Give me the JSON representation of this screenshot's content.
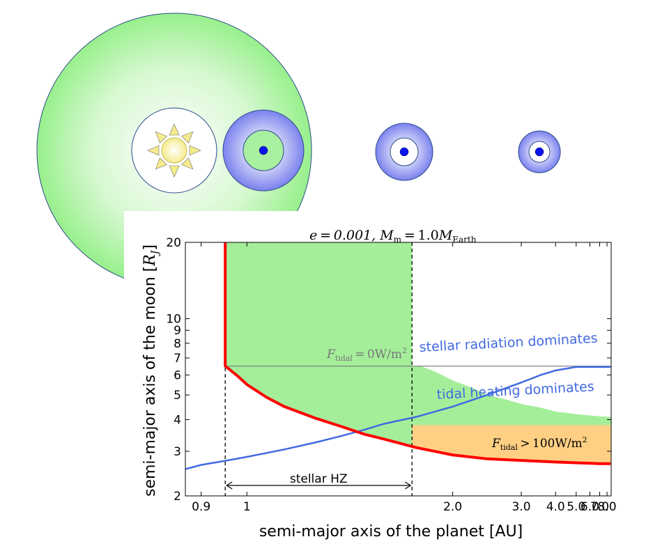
{
  "chart_data": {
    "type": "line",
    "title": "e = 0.001, M_m = 1.0 M_Earth",
    "title_parts": {
      "e_eq": "e = 0.001,",
      "m": "M",
      "m_sub": "m",
      "eq2": " = 1.0",
      "M2": "M",
      "M2_sub": "Earth"
    },
    "xlabel": "semi-major axis of the planet [AU]",
    "ylabel_text": "semi-major axis of the moon [",
    "ylabel_R": "R",
    "ylabel_J": "J",
    "ylabel_end": "]",
    "x_scale": "reciprocal",
    "y_scale": "log",
    "xlim": [
      0.87,
      8.7
    ],
    "ylim": [
      2,
      20
    ],
    "x_ticks": [
      {
        "v": 0.9,
        "label": "0.9"
      },
      {
        "v": 1.0,
        "label": "1"
      },
      {
        "v": 2.0,
        "label": "2.0"
      },
      {
        "v": 3.0,
        "label": "3.0"
      },
      {
        "v": 4.0,
        "label": "4.0"
      },
      {
        "v": 5.0,
        "label": "5.0"
      },
      {
        "v": 6.0,
        "label": "6.0"
      },
      {
        "v": 7.0,
        "label": "7.0"
      },
      {
        "v": 8.0,
        "label": "8.0"
      }
    ],
    "y_ticks": [
      {
        "v": 2,
        "label": "2"
      },
      {
        "v": 3,
        "label": "3"
      },
      {
        "v": 4,
        "label": "4"
      },
      {
        "v": 5,
        "label": "5"
      },
      {
        "v": 6,
        "label": "6"
      },
      {
        "v": 7,
        "label": "7"
      },
      {
        "v": 8,
        "label": "8"
      },
      {
        "v": 9,
        "label": "9"
      },
      {
        "v": 10,
        "label": "10"
      },
      {
        "v": 20,
        "label": "20"
      }
    ],
    "hz": {
      "inner": 0.95,
      "outer": 1.67,
      "label": "stellar HZ"
    },
    "tidal_zero": {
      "y": 6.5,
      "label_pre": "F",
      "label_sub": "tidal",
      "label_post": " = 0W/m",
      "label_sup": "2"
    },
    "tidal_100": {
      "y": 3.8,
      "label_pre": "F",
      "label_sub": "tidal",
      "label_post": " > 100W/m",
      "label_sup": "2"
    },
    "labels": {
      "stellar": "stellar radiation dominates",
      "tidal": "tidal heating dominates"
    },
    "series": [
      {
        "key": "red_boundary",
        "color": "#ff0000",
        "x": [
          0.95,
          0.95,
          0.96,
          0.98,
          1.0,
          1.05,
          1.1,
          1.2,
          1.3,
          1.4,
          1.5,
          1.7,
          2.0,
          2.4,
          3.0,
          4.0,
          5.0,
          6.0,
          7.0,
          8.0,
          8.6
        ],
        "y": [
          20,
          6.5,
          6.3,
          5.9,
          5.5,
          4.9,
          4.5,
          4.05,
          3.75,
          3.5,
          3.35,
          3.1,
          2.9,
          2.8,
          2.76,
          2.72,
          2.7,
          2.69,
          2.68,
          2.68,
          2.68
        ]
      },
      {
        "key": "blue_crossover",
        "color": "#4169e1",
        "x": [
          0.87,
          0.9,
          0.95,
          1.0,
          1.1,
          1.2,
          1.3,
          1.4,
          1.5,
          1.7,
          2.0,
          2.4,
          3.0,
          3.5,
          4.0,
          5.0,
          6.0,
          7.0,
          8.0,
          8.6
        ],
        "y": [
          2.55,
          2.65,
          2.75,
          2.85,
          3.05,
          3.25,
          3.45,
          3.65,
          3.85,
          4.1,
          4.5,
          5.0,
          5.6,
          6.0,
          6.25,
          6.45,
          6.45,
          6.45,
          6.45,
          6.45
        ]
      },
      {
        "key": "green_region_top",
        "color": "#a4ee9a",
        "x": [
          1.73,
          1.8,
          2.0,
          2.4,
          3.0,
          4.0,
          5.0,
          6.0,
          7.0,
          8.0,
          8.7
        ],
        "y": [
          6.5,
          6.3,
          5.7,
          5.0,
          4.6,
          4.3,
          4.2,
          4.15,
          4.12,
          4.1,
          4.1
        ]
      }
    ]
  },
  "diagram": {
    "sun_ray_color": "#f4ec8c",
    "green_zone_color": "#98f08c",
    "blue_zone_color": "#7b82ee",
    "moon_color": "#0a14f0"
  }
}
